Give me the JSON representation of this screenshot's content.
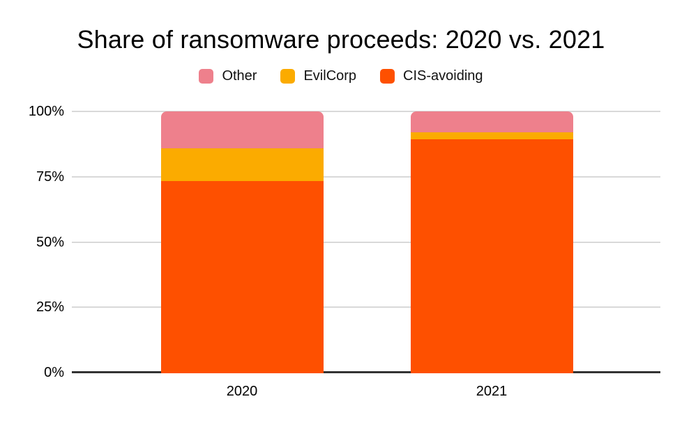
{
  "title": "Share of ransomware proceeds: 2020 vs. 2021",
  "chart_data": {
    "type": "bar",
    "stacked": true,
    "percent_stacked": true,
    "title": "Share of ransomware proceeds: 2020 vs. 2021",
    "categories": [
      "2020",
      "2021"
    ],
    "series": [
      {
        "name": "CIS-avoiding",
        "color": "#fe5000",
        "values": [
          73.5,
          89.3
        ]
      },
      {
        "name": "EvilCorp",
        "color": "#fbab00",
        "values": [
          12.5,
          2.7
        ]
      },
      {
        "name": "Other",
        "color": "#ee808c",
        "values": [
          14.0,
          8.0
        ]
      }
    ],
    "legend": {
      "position": "top",
      "order": [
        "Other",
        "EvilCorp",
        "CIS-avoiding"
      ]
    },
    "y_axis": {
      "min": 0,
      "max": 100,
      "tick_values": [
        0,
        25,
        50,
        75,
        100
      ],
      "tick_labels": [
        "0%",
        "25%",
        "50%",
        "75%",
        "100%"
      ]
    },
    "grid": true,
    "colors": {
      "gridline": "#d9d9d9",
      "axis_line": "#333333",
      "text": "#000000",
      "background": "#ffffff"
    }
  }
}
